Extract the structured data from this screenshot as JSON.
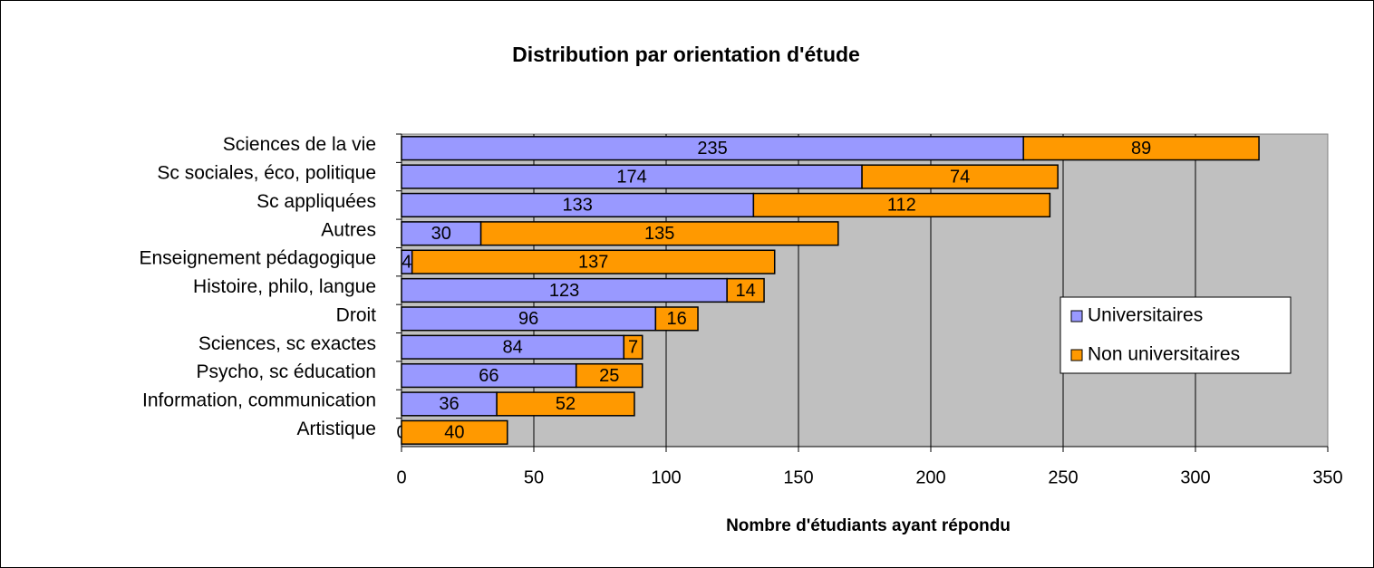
{
  "chart_data": {
    "type": "stacked-bar-horizontal",
    "title": "Distribution par orientation d'étude",
    "x_label": "Nombre d'étudiants ayant répondu",
    "categories": [
      "Sciences de la vie",
      "Sc sociales, éco, politique",
      "Sc appliquées",
      "Autres",
      "Enseignement pédagogique",
      "Histoire, philo, langue",
      "Droit",
      "Sciences, sc exactes",
      "Psycho, sc éducation",
      "Information, communication",
      "Artistique"
    ],
    "series": [
      {
        "name": "Universitaires",
        "color": "#9999ff",
        "values": [
          235,
          174,
          133,
          30,
          4,
          123,
          96,
          84,
          66,
          36,
          0
        ]
      },
      {
        "name": "Non universitaires",
        "color": "#ff9900",
        "values": [
          89,
          74,
          112,
          135,
          137,
          14,
          16,
          7,
          25,
          52,
          40
        ]
      }
    ],
    "xlim": [
      0,
      350
    ],
    "xticks": [
      0,
      50,
      100,
      150,
      200,
      250,
      300,
      350
    ],
    "grid": true,
    "legend": "right",
    "plot_background": "#c0c0c0"
  }
}
